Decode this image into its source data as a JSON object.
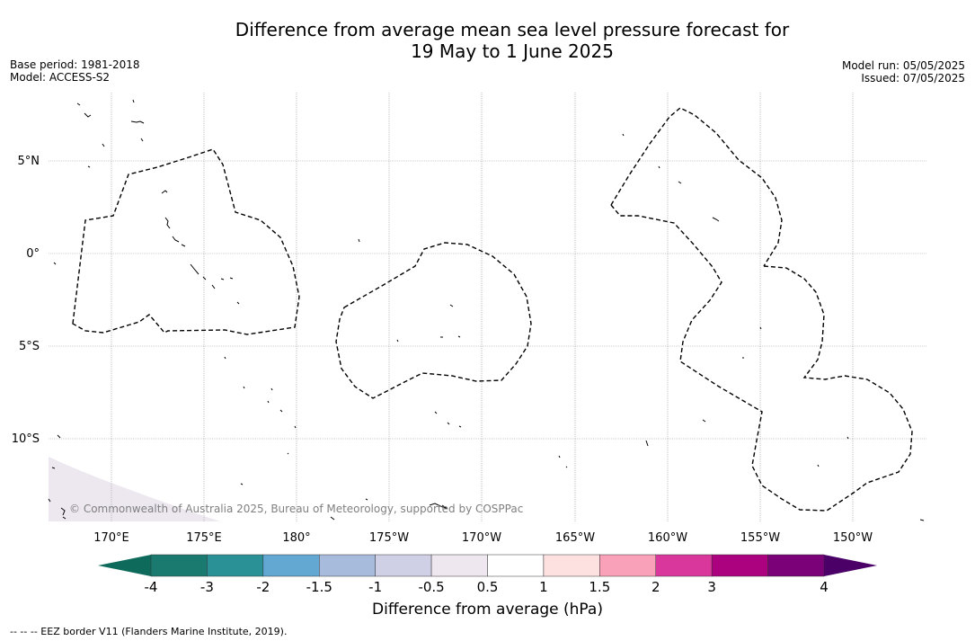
{
  "title": {
    "line1": "Difference from average mean sea level pressure forecast for",
    "line2": "19 May to 1 June 2025"
  },
  "meta_left": {
    "base_period": "Base period: 1981-2018",
    "model": "Model: ACCESS-S2"
  },
  "meta_right": {
    "model_run": "Model run: 05/05/2025",
    "issued": "Issued: 07/05/2025"
  },
  "map": {
    "lon_labels": [
      "170°E",
      "175°E",
      "180°",
      "175°W",
      "170°W",
      "165°W",
      "160°W",
      "155°W",
      "150°W"
    ],
    "lat_labels": [
      "5°N",
      "0°",
      "5°S",
      "10°S"
    ],
    "lon_range": [
      167.5,
      -146.5
    ],
    "lat_range": [
      8.5,
      -14.5
    ],
    "copyright": "© Commonwealth of Australia 2025, Bureau of Meteorology, supported by COSPPac",
    "background_color": "#ffffff",
    "anomaly_patch_color": "#ede8f0"
  },
  "colorbar": {
    "ticks": [
      "-4",
      "-3",
      "-2",
      "-1.5",
      "-1",
      "-0.5",
      "0.5",
      "1",
      "1.5",
      "2",
      "3",
      "4"
    ],
    "colors": [
      "#1a7a70",
      "#2a9297",
      "#63a7d3",
      "#a7bbdd",
      "#cfcfe6",
      "#efe7f0",
      "#ffffff",
      "#fde0e0",
      "#f8a1b8",
      "#d9379b",
      "#ad027f",
      "#7a0177"
    ],
    "under_color": "#0e6b5c",
    "over_color": "#4a0066",
    "label": "Difference from average (hPa)"
  },
  "footnote": "-- -- -- EEZ border V11 (Flanders Marine Institute, 2019)."
}
